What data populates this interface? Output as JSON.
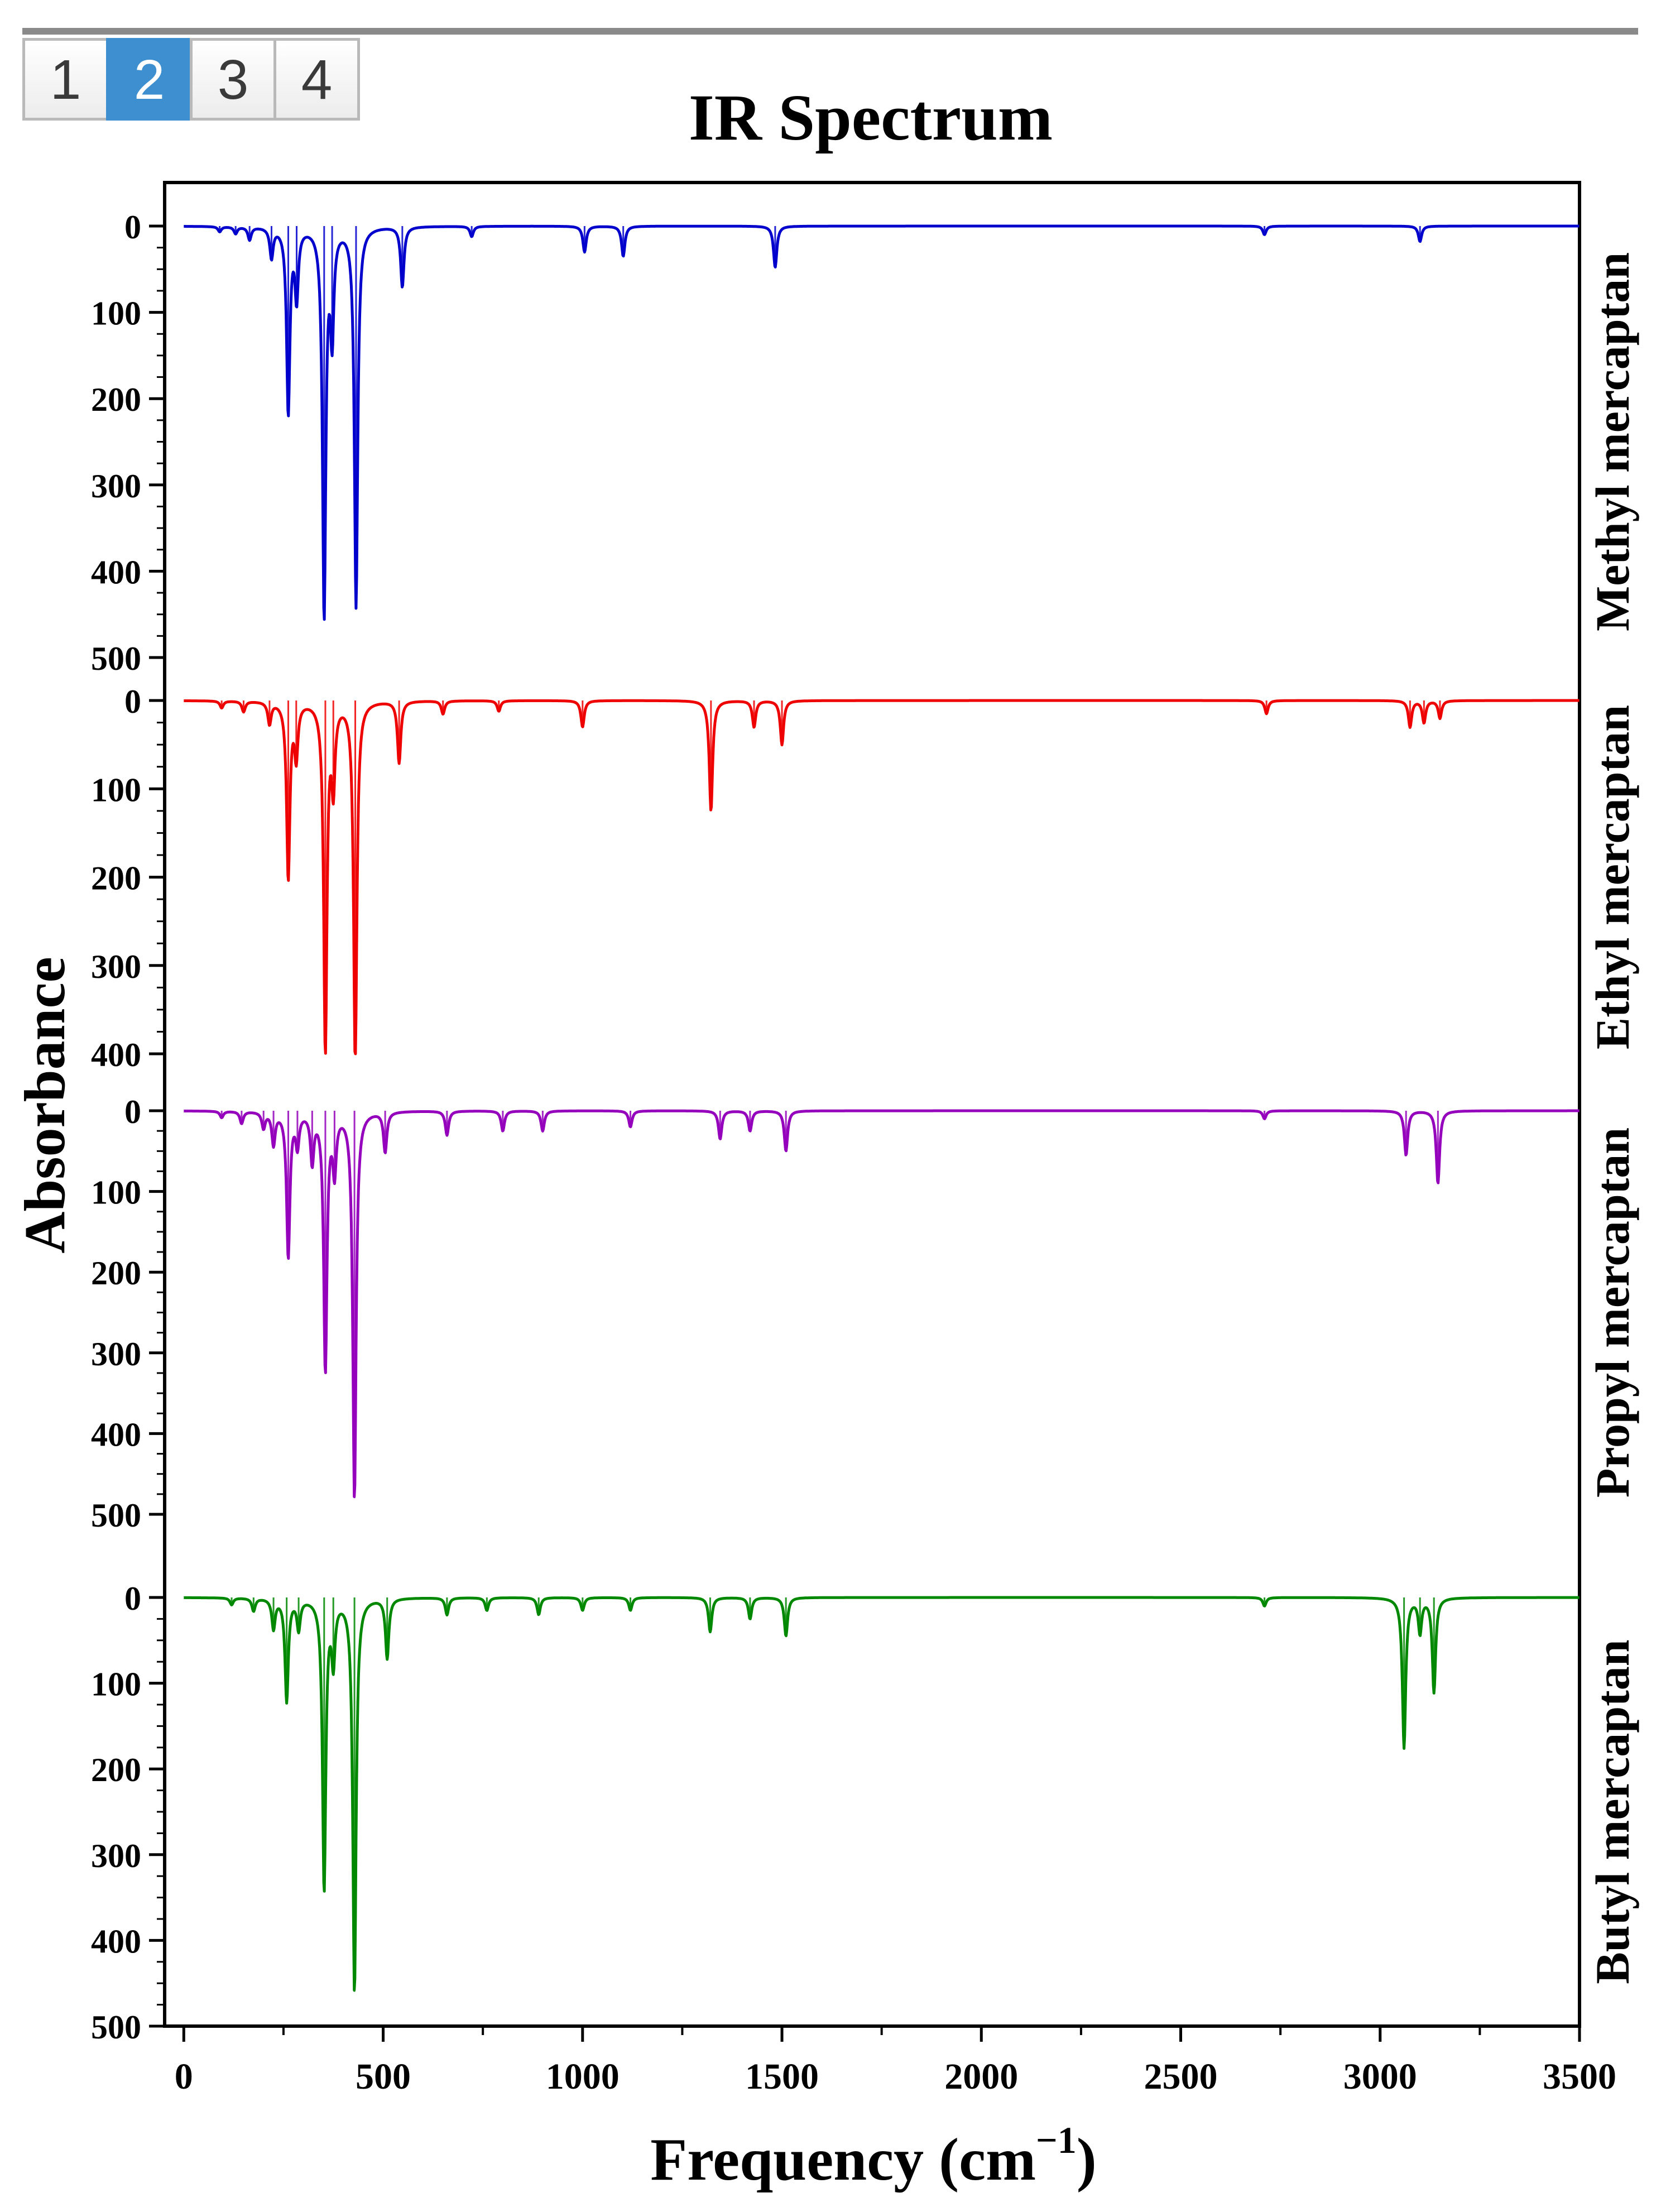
{
  "page_tabs": {
    "items": [
      {
        "label": "1",
        "active": false
      },
      {
        "label": "2",
        "active": true
      },
      {
        "label": "3",
        "active": false
      },
      {
        "label": "4",
        "active": false
      }
    ],
    "active_color": "#3d8fd0"
  },
  "chart_data": {
    "type": "line",
    "title": "IR Spectrum",
    "xlabel": "Frequency (cm",
    "xlabel_sup": "−1",
    "xlabel_close": ")",
    "ylabel": "Absorbance",
    "xlim": [
      -20,
      3500
    ],
    "x_ticks": [
      0,
      500,
      1000,
      1500,
      2000,
      2500,
      3000,
      3500
    ],
    "x_tick_labels": [
      "0",
      "500",
      "1000",
      "1500",
      "2000",
      "2500",
      "3000",
      "3500"
    ],
    "grid": false,
    "legend": "none",
    "panels": [
      {
        "name": "Methyl mercaptan",
        "color": "#0000cc",
        "ylim": [
          0,
          500
        ],
        "y_ticks": [
          0,
          100,
          200,
          300,
          400,
          500
        ],
        "y_tick_labels": [
          "0",
          "100",
          "200",
          "300",
          "400",
          "500"
        ],
        "peaks": [
          {
            "x": 90,
            "y": 6
          },
          {
            "x": 130,
            "y": 8
          },
          {
            "x": 165,
            "y": 15
          },
          {
            "x": 220,
            "y": 35
          },
          {
            "x": 262,
            "y": 215
          },
          {
            "x": 283,
            "y": 80
          },
          {
            "x": 352,
            "y": 450
          },
          {
            "x": 372,
            "y": 120
          },
          {
            "x": 432,
            "y": 440
          },
          {
            "x": 548,
            "y": 70
          },
          {
            "x": 722,
            "y": 12
          },
          {
            "x": 1005,
            "y": 30
          },
          {
            "x": 1102,
            "y": 35
          },
          {
            "x": 1483,
            "y": 48
          },
          {
            "x": 2710,
            "y": 10
          },
          {
            "x": 3100,
            "y": 18
          }
        ]
      },
      {
        "name": "Ethyl mercaptan",
        "color": "#ee0000",
        "ylim": [
          0,
          400
        ],
        "y_ticks": [
          0,
          100,
          200,
          300,
          400
        ],
        "y_tick_labels": [
          "0",
          "100",
          "200",
          "300",
          "400"
        ],
        "peaks": [
          {
            "x": 95,
            "y": 8
          },
          {
            "x": 150,
            "y": 12
          },
          {
            "x": 215,
            "y": 25
          },
          {
            "x": 262,
            "y": 200
          },
          {
            "x": 282,
            "y": 60
          },
          {
            "x": 355,
            "y": 395
          },
          {
            "x": 375,
            "y": 90
          },
          {
            "x": 430,
            "y": 410
          },
          {
            "x": 540,
            "y": 70
          },
          {
            "x": 650,
            "y": 15
          },
          {
            "x": 790,
            "y": 12
          },
          {
            "x": 1000,
            "y": 30
          },
          {
            "x": 1322,
            "y": 125
          },
          {
            "x": 1430,
            "y": 30
          },
          {
            "x": 1500,
            "y": 50
          },
          {
            "x": 2715,
            "y": 15
          },
          {
            "x": 3075,
            "y": 30
          },
          {
            "x": 3110,
            "y": 25
          },
          {
            "x": 3150,
            "y": 20
          }
        ]
      },
      {
        "name": "Propyl mercaptan",
        "color": "#9400bb",
        "ylim": [
          0,
          500
        ],
        "y_ticks": [
          0,
          100,
          200,
          300,
          400,
          500
        ],
        "y_tick_labels": [
          "0",
          "100",
          "200",
          "300",
          "400",
          "500"
        ],
        "peaks": [
          {
            "x": 95,
            "y": 8
          },
          {
            "x": 145,
            "y": 15
          },
          {
            "x": 200,
            "y": 20
          },
          {
            "x": 225,
            "y": 40
          },
          {
            "x": 262,
            "y": 180
          },
          {
            "x": 285,
            "y": 40
          },
          {
            "x": 322,
            "y": 60
          },
          {
            "x": 355,
            "y": 320
          },
          {
            "x": 378,
            "y": 70
          },
          {
            "x": 428,
            "y": 480
          },
          {
            "x": 505,
            "y": 50
          },
          {
            "x": 660,
            "y": 30
          },
          {
            "x": 800,
            "y": 25
          },
          {
            "x": 900,
            "y": 25
          },
          {
            "x": 1120,
            "y": 20
          },
          {
            "x": 1345,
            "y": 35
          },
          {
            "x": 1420,
            "y": 25
          },
          {
            "x": 1510,
            "y": 50
          },
          {
            "x": 2710,
            "y": 10
          },
          {
            "x": 3065,
            "y": 55
          },
          {
            "x": 3145,
            "y": 90
          }
        ]
      },
      {
        "name": "Butyl mercaptan",
        "color": "#008800",
        "ylim": [
          0,
          500
        ],
        "y_ticks": [
          0,
          100,
          200,
          300,
          400,
          500
        ],
        "y_tick_labels": [
          "0",
          "100",
          "200",
          "300",
          "400",
          "500"
        ],
        "peaks": [
          {
            "x": 120,
            "y": 8
          },
          {
            "x": 175,
            "y": 15
          },
          {
            "x": 225,
            "y": 35
          },
          {
            "x": 258,
            "y": 120
          },
          {
            "x": 288,
            "y": 35
          },
          {
            "x": 352,
            "y": 340
          },
          {
            "x": 375,
            "y": 70
          },
          {
            "x": 428,
            "y": 460
          },
          {
            "x": 510,
            "y": 70
          },
          {
            "x": 660,
            "y": 20
          },
          {
            "x": 760,
            "y": 15
          },
          {
            "x": 890,
            "y": 20
          },
          {
            "x": 1000,
            "y": 15
          },
          {
            "x": 1120,
            "y": 15
          },
          {
            "x": 1320,
            "y": 40
          },
          {
            "x": 1420,
            "y": 25
          },
          {
            "x": 1510,
            "y": 45
          },
          {
            "x": 2710,
            "y": 10
          },
          {
            "x": 3060,
            "y": 175
          },
          {
            "x": 3100,
            "y": 40
          },
          {
            "x": 3135,
            "y": 110
          }
        ]
      }
    ]
  }
}
